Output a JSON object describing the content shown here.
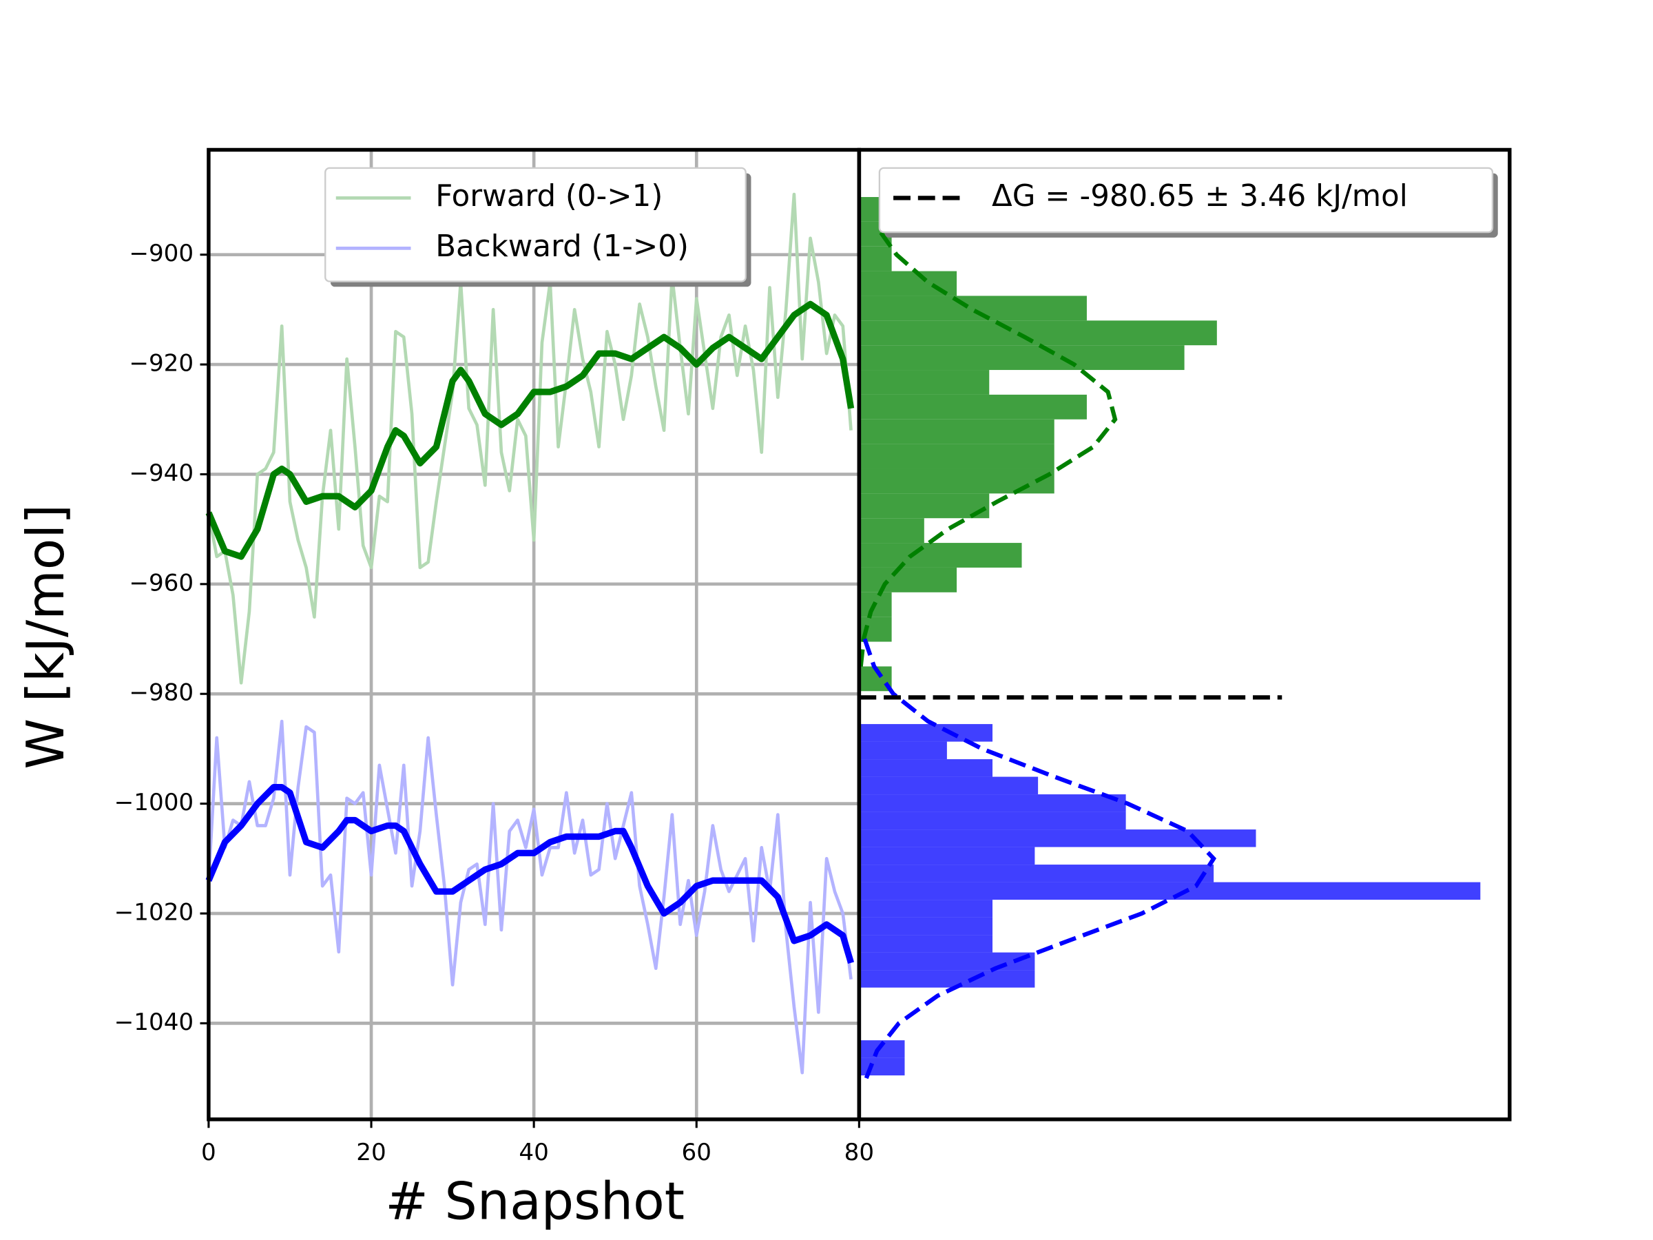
{
  "chart_data": [
    {
      "type": "line",
      "xlabel": "# Snapshot",
      "ylabel": "W [kJ/mol]",
      "xlim": [
        0,
        80
      ],
      "ylim": [
        -1057.5,
        -880.9
      ],
      "xticks": [
        0,
        20,
        40,
        60,
        80
      ],
      "yticks": [
        {
          "value": -1040,
          "label": "−1040"
        },
        {
          "value": -1020,
          "label": "−1020"
        },
        {
          "value": -1000,
          "label": "−1000"
        },
        {
          "value": -980,
          "label": "−980"
        },
        {
          "value": -960,
          "label": "−960"
        },
        {
          "value": -940,
          "label": "−940"
        },
        {
          "value": -920,
          "label": "−920"
        },
        {
          "value": -900,
          "label": "−900"
        }
      ],
      "grid": true,
      "legend": "upper center",
      "x": [
        0,
        1,
        2,
        3,
        4,
        5,
        6,
        7,
        8,
        9,
        10,
        11,
        12,
        13,
        14,
        15,
        16,
        17,
        18,
        19,
        20,
        21,
        22,
        23,
        24,
        25,
        26,
        27,
        28,
        29,
        30,
        31,
        32,
        33,
        34,
        35,
        36,
        37,
        38,
        39,
        40,
        41,
        42,
        43,
        44,
        45,
        46,
        47,
        48,
        49,
        50,
        51,
        52,
        53,
        54,
        55,
        56,
        57,
        58,
        59,
        60,
        61,
        62,
        63,
        64,
        65,
        66,
        67,
        68,
        69,
        70,
        71,
        72,
        73,
        74,
        75,
        76,
        77,
        78,
        79
      ],
      "series": [
        {
          "name": "Forward (0->1)",
          "color": "#b3d9b3",
          "linewidth": 3,
          "values": [
            -947,
            -955,
            -954,
            -962,
            -978,
            -965,
            -940,
            -939,
            -936,
            -913,
            -945,
            -952,
            -957,
            -966,
            -944,
            -932,
            -950,
            -919,
            -935,
            -953,
            -957,
            -944,
            -945,
            -914,
            -915,
            -929,
            -957,
            -956,
            -945,
            -935,
            -925,
            -905,
            -928,
            -931,
            -942,
            -910,
            -936,
            -943,
            -930,
            -933,
            -952,
            -916,
            -905,
            -935,
            -923,
            -910,
            -919,
            -925,
            -935,
            -914,
            -920,
            -930,
            -922,
            -909,
            -915,
            -924,
            -932,
            -904,
            -917,
            -929,
            -908,
            -918,
            -928,
            -915,
            -911,
            -922,
            -913,
            -921,
            -936,
            -906,
            -926,
            -910,
            -889,
            -919,
            -897,
            -905,
            -918,
            -911,
            -913,
            -932
          ]
        },
        {
          "name": "Backward (1->0)",
          "color": "#b3b3ff",
          "linewidth": 3,
          "values": [
            -1014,
            -988,
            -1008,
            -1003,
            -1004,
            -996,
            -1004,
            -1004,
            -999,
            -985,
            -1013,
            -997,
            -986,
            -987,
            -1015,
            -1013,
            -1027,
            -999,
            -1000,
            -998,
            -1013,
            -993,
            -1001,
            -1009,
            -993,
            -1015,
            -1005,
            -988,
            -1002,
            -1015,
            -1033,
            -1018,
            -1012,
            -1011,
            -1022,
            -1000,
            -1023,
            -1005,
            -1003,
            -1008,
            -1001,
            -1013,
            -1008,
            -1008,
            -998,
            -1009,
            -1003,
            -1013,
            -1012,
            -1000,
            -1010,
            -1004,
            -998,
            -1015,
            -1022,
            -1030,
            -1017,
            -1002,
            -1022,
            -1014,
            -1024,
            -1016,
            -1004,
            -1012,
            -1016,
            -1013,
            -1010,
            -1025,
            -1008,
            -1016,
            -1002,
            -1023,
            -1037,
            -1049,
            -1018,
            -1038,
            -1010,
            -1016,
            -1020,
            -1032
          ]
        },
        {
          "color": "#008000",
          "linewidth": 6,
          "x": [
            0,
            2,
            4,
            6,
            8,
            9,
            10,
            12,
            14,
            16,
            18,
            20,
            22,
            23,
            24,
            26,
            28,
            30,
            31,
            32,
            34,
            36,
            38,
            40,
            42,
            44,
            46,
            48,
            50,
            52,
            54,
            56,
            58,
            60,
            62,
            64,
            66,
            68,
            70,
            72,
            74,
            76,
            78,
            79
          ],
          "values": [
            -947,
            -954,
            -955,
            -950,
            -940,
            -939,
            -940,
            -945,
            -944,
            -944,
            -946,
            -943,
            -935,
            -932,
            -933,
            -938,
            -935,
            -923,
            -921,
            -923,
            -929,
            -931,
            -929,
            -925,
            -925,
            -924,
            -922,
            -918,
            -918,
            -919,
            -917,
            -915,
            -917,
            -920,
            -917,
            -915,
            -917,
            -919,
            -915,
            -911,
            -909,
            -911,
            -919,
            -928
          ]
        },
        {
          "color": "#0000ff",
          "linewidth": 6,
          "x": [
            0,
            2,
            4,
            6,
            8,
            9,
            10,
            12,
            14,
            16,
            17,
            18,
            20,
            22,
            23,
            24,
            26,
            28,
            30,
            32,
            34,
            36,
            38,
            40,
            42,
            44,
            46,
            48,
            50,
            51,
            52,
            54,
            56,
            58,
            60,
            62,
            64,
            66,
            68,
            70,
            72,
            74,
            76,
            78,
            79
          ],
          "values": [
            -1014,
            -1007,
            -1004,
            -1000,
            -997,
            -997,
            -998,
            -1007,
            -1008,
            -1005,
            -1003,
            -1003,
            -1005,
            -1004,
            -1004,
            -1005,
            -1011,
            -1016,
            -1016,
            -1014,
            -1012,
            -1011,
            -1009,
            -1009,
            -1007,
            -1006,
            -1006,
            -1006,
            -1005,
            -1005,
            -1008,
            -1015,
            -1020,
            -1018,
            -1015,
            -1014,
            -1014,
            -1014,
            -1014,
            -1017,
            -1025,
            -1024,
            -1022,
            -1024,
            -1029
          ]
        }
      ]
    },
    {
      "type": "histogram",
      "orientation": "horizontal",
      "xlim": [
        0,
        20
      ],
      "ylim": [
        -1057.5,
        -880.9
      ],
      "legend": "upper right",
      "series": [
        {
          "color": "#40a040",
          "bins": [
            -979.5,
            -975,
            -970.5,
            -966,
            -961.5,
            -957,
            -952.5,
            -948,
            -943.5,
            -939,
            -934.5,
            -930,
            -925.5,
            -921,
            -916.5,
            -912,
            -907.5,
            -903,
            -898.5,
            -894,
            -889.5
          ],
          "values": [
            1,
            0,
            1,
            1,
            3,
            5,
            2,
            4,
            6,
            6,
            6,
            7,
            4,
            10,
            11,
            7,
            3,
            1,
            1,
            1
          ]
        },
        {
          "color": "#4040ff",
          "bins": [
            -1049.5,
            -1046.3,
            -1043.1,
            -1039.9,
            -1036.7,
            -1033.5,
            -1030.3,
            -1027.1,
            -1023.9,
            -1020.7,
            -1017.5,
            -1014.3,
            -1011.1,
            -1007.9,
            -1004.7,
            -1001.5,
            -998.3,
            -995.1,
            -991.9,
            -988.7,
            -985.5
          ],
          "values": [
            1.4,
            1.4,
            0,
            0,
            0,
            5.4,
            5.4,
            4.1,
            4.1,
            4.1,
            19.1,
            10.9,
            5.4,
            12.2,
            8.2,
            8.2,
            5.5,
            4.1,
            2.7,
            4.1
          ]
        }
      ],
      "fits": [
        {
          "color": "#008000",
          "linestyle": "dashed",
          "y": [
            -975,
            -970,
            -965,
            -960,
            -955,
            -950,
            -945,
            -940,
            -935,
            -930,
            -925,
            -920,
            -915,
            -910,
            -905,
            -900,
            -895
          ],
          "values": [
            0.05,
            0.14,
            0.36,
            0.79,
            1.56,
            2.73,
            4.24,
            5.85,
            7.2,
            7.87,
            7.65,
            6.61,
            5.09,
            3.48,
            2.11,
            1.15,
            0.55
          ]
        },
        {
          "color": "#0000ff",
          "linestyle": "dashed",
          "y": [
            -970,
            -975,
            -980,
            -985,
            -990,
            -995,
            -1000,
            -1005,
            -1010,
            -1015,
            -1020,
            -1025,
            -1030,
            -1035,
            -1040,
            -1045,
            -1050
          ],
          "values": [
            0.17,
            0.46,
            1.05,
            2.12,
            3.78,
            5.96,
            8.26,
            10.1,
            10.9,
            10.36,
            8.69,
            6.42,
            4.19,
            2.41,
            1.22,
            0.55,
            0.22
          ]
        }
      ],
      "delta_g": {
        "label": "ΔG = -980.65 ± 3.46 kJ/mol",
        "value": -980.65,
        "color": "#000000",
        "xlim": [
          0,
          13
        ]
      }
    }
  ]
}
